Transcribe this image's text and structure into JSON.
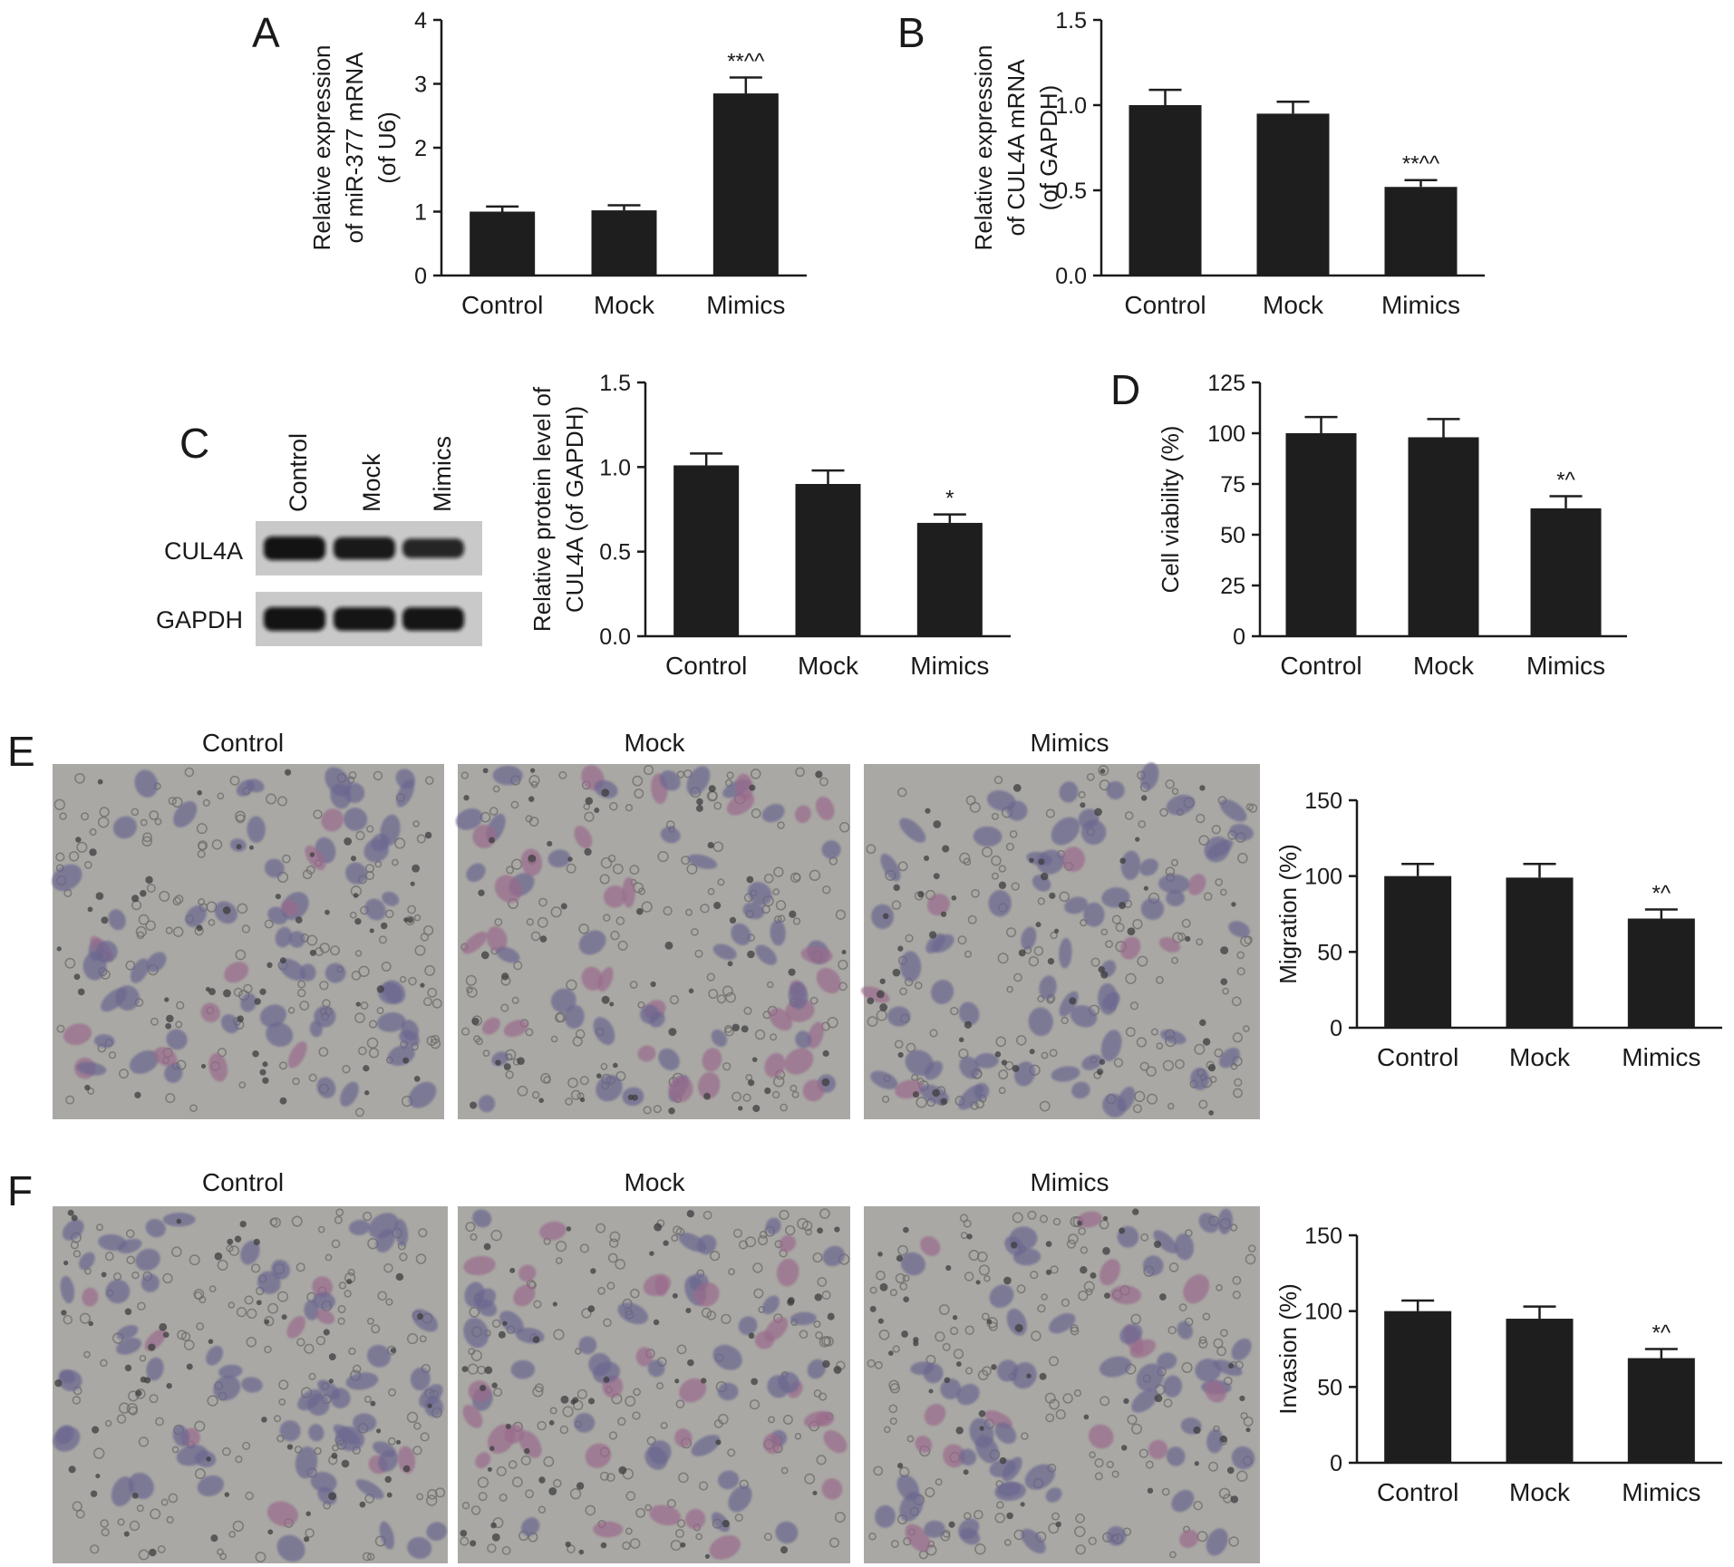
{
  "figure": {
    "panels": {
      "A": "A",
      "B": "B",
      "C": "C",
      "D": "D",
      "E": "E",
      "F": "F"
    },
    "blot": {
      "lanes": [
        "Control",
        "Mock",
        "Mimics"
      ],
      "rows": [
        {
          "label": "CUL4A",
          "intensity": [
            0.92,
            0.85,
            0.7
          ]
        },
        {
          "label": "GAPDH",
          "intensity": [
            0.92,
            0.9,
            0.9
          ]
        }
      ]
    },
    "micrographs": [
      {
        "panel": "E",
        "titles": [
          "Control",
          "Mock",
          "Mimics"
        ]
      },
      {
        "panel": "F",
        "titles": [
          "Control",
          "Mock",
          "Mimics"
        ]
      }
    ],
    "colors": {
      "bar": "#1e1e1e",
      "axis": "#1a1a1a",
      "micrograph_bg": "#a9a8a4",
      "cell_purple": "#6a6690",
      "cell_pink": "#9a6b8c"
    }
  },
  "chart_data": [
    {
      "id": "A",
      "type": "bar",
      "categories": [
        "Control",
        "Mock",
        "Mimics"
      ],
      "values": [
        1.0,
        1.02,
        2.85
      ],
      "errors": [
        0.08,
        0.08,
        0.25
      ],
      "annotations": [
        "",
        "",
        "**^^"
      ],
      "ylabel": [
        "Relative expression",
        "of miR-377 mRNA",
        "(of U6)"
      ],
      "ylim": [
        0,
        4
      ],
      "yticks": [
        "0",
        "1",
        "2",
        "3",
        "4"
      ]
    },
    {
      "id": "B",
      "type": "bar",
      "categories": [
        "Control",
        "Mock",
        "Mimics"
      ],
      "values": [
        1.0,
        0.95,
        0.52
      ],
      "errors": [
        0.09,
        0.07,
        0.04
      ],
      "annotations": [
        "",
        "",
        "**^^"
      ],
      "ylabel": [
        "Relative expression",
        "of CUL4A mRNA",
        "(of GAPDH)"
      ],
      "ylim": [
        0,
        1.5
      ],
      "yticks": [
        "0.0",
        "0.5",
        "1.0",
        "1.5"
      ]
    },
    {
      "id": "C",
      "type": "bar",
      "categories": [
        "Control",
        "Mock",
        "Mimics"
      ],
      "values": [
        1.01,
        0.9,
        0.67
      ],
      "errors": [
        0.07,
        0.08,
        0.05
      ],
      "annotations": [
        "",
        "",
        "*"
      ],
      "ylabel": [
        "Relative protein level of",
        "CUL4A (of GAPDH)"
      ],
      "ylim": [
        0,
        1.5
      ],
      "yticks": [
        "0.0",
        "0.5",
        "1.0",
        "1.5"
      ]
    },
    {
      "id": "D",
      "type": "bar",
      "categories": [
        "Control",
        "Mock",
        "Mimics"
      ],
      "values": [
        100,
        98,
        63
      ],
      "errors": [
        8,
        9,
        6
      ],
      "annotations": [
        "",
        "",
        "*^"
      ],
      "ylabel": [
        "Cell viability (%)"
      ],
      "ylim": [
        0,
        125
      ],
      "yticks": [
        "0",
        "25",
        "50",
        "75",
        "100",
        "125"
      ]
    },
    {
      "id": "E",
      "type": "bar",
      "categories": [
        "Control",
        "Mock",
        "Mimics"
      ],
      "values": [
        100,
        99,
        72
      ],
      "errors": [
        8,
        9,
        6
      ],
      "annotations": [
        "",
        "",
        "*^"
      ],
      "ylabel": [
        "Migration (%)"
      ],
      "ylim": [
        0,
        150
      ],
      "yticks": [
        "0",
        "50",
        "100",
        "150"
      ]
    },
    {
      "id": "F",
      "type": "bar",
      "categories": [
        "Control",
        "Mock",
        "Mimics"
      ],
      "values": [
        100,
        95,
        69
      ],
      "errors": [
        7,
        8,
        6
      ],
      "annotations": [
        "",
        "",
        "*^"
      ],
      "ylabel": [
        "Invasion (%)"
      ],
      "ylim": [
        0,
        150
      ],
      "yticks": [
        "0",
        "50",
        "100",
        "150"
      ]
    }
  ]
}
